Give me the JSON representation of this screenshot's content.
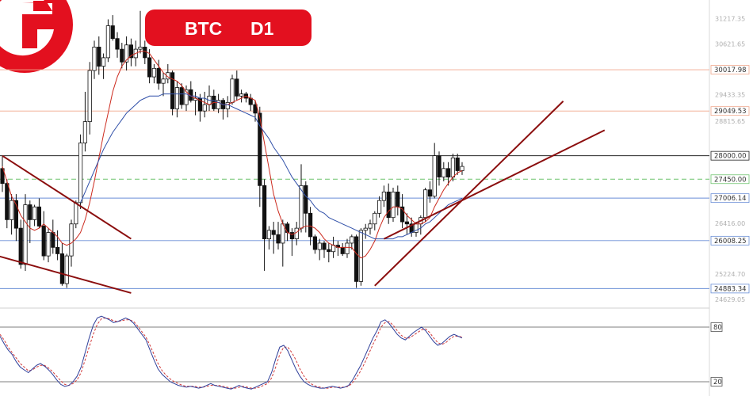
{
  "badge": {
    "symbol": "BTC",
    "timeframe": "D1"
  },
  "colors": {
    "brand": "#e3101f",
    "bull": "#ffffff",
    "bear": "#111111",
    "sma_fast": "#cc2a1e",
    "sma_slow": "#2f4fa8",
    "channel": "#8b0e0e",
    "stoch_k": "#2f3f9a",
    "stoch_d": "#d23b3b"
  },
  "chart_data": {
    "type": "candlestick",
    "symbol": "BTC",
    "timeframe": "D1",
    "ylim": [
      24500,
      31450
    ],
    "price_ticks": [
      31217.35,
      30621.65,
      29433.35,
      28815.65,
      26416.0,
      25224.7,
      24629.05
    ],
    "levels": [
      {
        "price": 30017.98,
        "label": "30017.98",
        "color": "#f0a78c"
      },
      {
        "price": 29049.53,
        "label": "29049.53",
        "color": "#f0a78c"
      },
      {
        "price": 28000.0,
        "label": "28000.00",
        "color": "#222222"
      },
      {
        "price": 27450.0,
        "label": "27450.00",
        "color": "#6ec46e",
        "dashed": true
      },
      {
        "price": 27006.14,
        "label": "27006.14",
        "color": "#6a8ed6"
      },
      {
        "price": 26008.25,
        "label": "26008.25",
        "color": "#6a8ed6"
      },
      {
        "price": 24883.34,
        "label": "24883.34",
        "color": "#6a8ed6"
      }
    ],
    "candles": [
      [
        27700,
        28000,
        27150,
        27350
      ],
      [
        27350,
        27450,
        26300,
        26500
      ],
      [
        26500,
        27100,
        26150,
        26950
      ],
      [
        26950,
        27100,
        26000,
        26300
      ],
      [
        26300,
        26500,
        25350,
        25450
      ],
      [
        25450,
        27100,
        25300,
        26850
      ],
      [
        26850,
        26950,
        25950,
        26500
      ],
      [
        26500,
        26850,
        26350,
        26800
      ],
      [
        26800,
        27000,
        26300,
        26350
      ],
      [
        26350,
        26700,
        25550,
        25650
      ],
      [
        25650,
        26300,
        25500,
        26200
      ],
      [
        26200,
        26500,
        25700,
        25850
      ],
      [
        25850,
        26250,
        25550,
        25700
      ],
      [
        25700,
        25950,
        24950,
        25000
      ],
      [
        25000,
        25700,
        24900,
        25650
      ],
      [
        25650,
        26500,
        25400,
        26400
      ],
      [
        26400,
        26950,
        26300,
        26900
      ],
      [
        26900,
        28500,
        26750,
        28300
      ],
      [
        28300,
        29500,
        28100,
        28800
      ],
      [
        28800,
        30200,
        28500,
        30000
      ],
      [
        30000,
        30700,
        29800,
        30550
      ],
      [
        30550,
        30800,
        29900,
        30100
      ],
      [
        30100,
        30400,
        29800,
        30300
      ],
      [
        30300,
        31200,
        30200,
        31050
      ],
      [
        31050,
        31300,
        30700,
        30750
      ],
      [
        30750,
        30900,
        30300,
        30500
      ],
      [
        30500,
        30650,
        30050,
        30200
      ],
      [
        30200,
        30800,
        30000,
        30600
      ],
      [
        30600,
        30750,
        30100,
        30300
      ],
      [
        30300,
        30700,
        30100,
        30500
      ],
      [
        30500,
        31400,
        30400,
        30550
      ],
      [
        30550,
        30700,
        30150,
        30300
      ],
      [
        30300,
        30500,
        29700,
        29850
      ],
      [
        29850,
        30150,
        29700,
        30050
      ],
      [
        30050,
        30250,
        29550,
        29700
      ],
      [
        29700,
        29950,
        29400,
        29800
      ],
      [
        29800,
        30150,
        29700,
        29950
      ],
      [
        29950,
        30000,
        28950,
        29100
      ],
      [
        29100,
        29750,
        28900,
        29600
      ],
      [
        29600,
        29700,
        29100,
        29200
      ],
      [
        29200,
        29650,
        29050,
        29550
      ],
      [
        29550,
        29750,
        29250,
        29300
      ],
      [
        29300,
        29500,
        28950,
        29350
      ],
      [
        29350,
        29450,
        28800,
        29050
      ],
      [
        29050,
        29500,
        28900,
        29200
      ],
      [
        29200,
        29650,
        29050,
        29400
      ],
      [
        29400,
        29550,
        29050,
        29100
      ],
      [
        29100,
        29450,
        29000,
        29300
      ],
      [
        29300,
        29350,
        28850,
        29100
      ],
      [
        29100,
        29400,
        28900,
        29250
      ],
      [
        29250,
        29900,
        29200,
        29800
      ],
      [
        29800,
        30000,
        29300,
        29400
      ],
      [
        29400,
        29550,
        29250,
        29450
      ],
      [
        29450,
        29500,
        29250,
        29350
      ],
      [
        29350,
        29450,
        29050,
        29200
      ],
      [
        29200,
        29300,
        28800,
        29000
      ],
      [
        29000,
        29150,
        26800,
        27300
      ],
      [
        27300,
        27450,
        25300,
        26050
      ],
      [
        26050,
        26350,
        25800,
        26250
      ],
      [
        26250,
        26450,
        25700,
        26150
      ],
      [
        26150,
        26450,
        25800,
        25950
      ],
      [
        25950,
        26500,
        25400,
        26400
      ],
      [
        26400,
        26450,
        26000,
        26200
      ],
      [
        26200,
        26300,
        25650,
        26050
      ],
      [
        26050,
        26450,
        25900,
        26300
      ],
      [
        26300,
        27800,
        26200,
        27300
      ],
      [
        27300,
        27400,
        26200,
        26650
      ],
      [
        26650,
        26800,
        25900,
        26100
      ],
      [
        26100,
        26150,
        25700,
        25800
      ],
      [
        25800,
        26050,
        25550,
        25950
      ],
      [
        25950,
        26000,
        25600,
        25800
      ],
      [
        25800,
        25950,
        25500,
        25750
      ],
      [
        25750,
        26100,
        25600,
        25900
      ],
      [
        25900,
        26000,
        25650,
        25850
      ],
      [
        25850,
        25950,
        25650,
        25700
      ],
      [
        25700,
        26050,
        25600,
        25950
      ],
      [
        25950,
        26150,
        25800,
        26100
      ],
      [
        26100,
        26150,
        24900,
        25050
      ],
      [
        25050,
        26300,
        24950,
        26250
      ],
      [
        26250,
        26400,
        26050,
        26300
      ],
      [
        26300,
        26500,
        26150,
        26400
      ],
      [
        26400,
        26700,
        26250,
        26650
      ],
      [
        26650,
        27050,
        26550,
        26950
      ],
      [
        26950,
        27300,
        26800,
        27150
      ],
      [
        27150,
        27350,
        26400,
        26550
      ],
      [
        26550,
        27250,
        26450,
        27150
      ],
      [
        27150,
        27300,
        26600,
        26800
      ],
      [
        26800,
        27100,
        26300,
        26450
      ],
      [
        26450,
        26650,
        26150,
        26400
      ],
      [
        26400,
        26550,
        26100,
        26200
      ],
      [
        26200,
        26450,
        26100,
        26400
      ],
      [
        26400,
        26600,
        26150,
        26550
      ],
      [
        26550,
        27250,
        26450,
        27200
      ],
      [
        27200,
        27400,
        26900,
        27050
      ],
      [
        27050,
        28300,
        27000,
        28000
      ],
      [
        28000,
        28100,
        27300,
        27500
      ],
      [
        27500,
        27850,
        27400,
        27700
      ],
      [
        27700,
        27850,
        27300,
        27500
      ],
      [
        27500,
        28050,
        27400,
        27950
      ],
      [
        27950,
        28050,
        27550,
        27650
      ],
      [
        27650,
        27850,
        27550,
        27750
      ]
    ],
    "sma_fast": [
      27750,
      27400,
      27050,
      26850,
      26600,
      26450,
      26300,
      26250,
      26300,
      26400,
      26300,
      26200,
      26100,
      25950,
      25900,
      25950,
      26050,
      26200,
      26500,
      26900,
      27400,
      27950,
      28500,
      29000,
      29500,
      29850,
      30100,
      30250,
      30350,
      30400,
      30450,
      30450,
      30400,
      30250,
      30100,
      29950,
      29850,
      29800,
      29750,
      29650,
      29500,
      29400,
      29350,
      29300,
      29250,
      29200,
      29250,
      29250,
      29200,
      29200,
      29250,
      29300,
      29350,
      29400,
      29350,
      29300,
      28900,
      28300,
      27700,
      27100,
      26700,
      26400,
      26200,
      26150,
      26200,
      26300,
      26350,
      26350,
      26300,
      26200,
      26050,
      25950,
      25900,
      25850,
      25850,
      25850,
      25850,
      25700,
      25600,
      25650,
      25800,
      26000,
      26300,
      26550,
      26700,
      26800,
      26800,
      26750,
      26600,
      26500,
      26400,
      26400,
      26450,
      26550,
      26800,
      27000,
      27200,
      27350,
      27500,
      27600,
      27650
    ],
    "sma_slow": [
      null,
      null,
      null,
      null,
      null,
      null,
      null,
      null,
      null,
      null,
      null,
      null,
      null,
      null,
      null,
      null,
      null,
      26900,
      27150,
      27400,
      27650,
      27900,
      28150,
      28350,
      28550,
      28700,
      28850,
      29000,
      29100,
      29200,
      29300,
      29350,
      29400,
      29400,
      29400,
      29450,
      29450,
      29450,
      29450,
      29450,
      29450,
      29400,
      29400,
      29350,
      29350,
      29300,
      29300,
      29250,
      29200,
      29200,
      29150,
      29100,
      29050,
      29000,
      28950,
      28900,
      28700,
      28550,
      28400,
      28200,
      28050,
      27900,
      27700,
      27500,
      27350,
      27200,
      27050,
      26950,
      26800,
      26700,
      26650,
      26550,
      26500,
      26450,
      26400,
      26350,
      26300,
      26250,
      26200,
      26150,
      26100,
      26050,
      26050,
      26050,
      26050,
      26050,
      26100,
      26100,
      26150,
      26200,
      26250,
      26300,
      26400,
      26450,
      26550,
      26650,
      26750,
      26850,
      26900,
      26950,
      27000
    ],
    "channels": [
      {
        "from": [
          0,
          28000
        ],
        "to": [
          28,
          26050
        ]
      },
      {
        "from": [
          -1,
          25650
        ],
        "to": [
          28,
          24780
        ]
      },
      {
        "from": [
          81,
          24950
        ],
        "to": [
          122,
          29280
        ]
      },
      {
        "from": [
          83,
          26050
        ],
        "to": [
          131,
          28600
        ]
      }
    ],
    "stochastic": {
      "levels": [
        80,
        20
      ],
      "level_labels": [
        "80",
        "20"
      ],
      "k": [
        70,
        62,
        55,
        50,
        42,
        36,
        33,
        30,
        34,
        38,
        40,
        37,
        33,
        28,
        22,
        17,
        15,
        16,
        20,
        26,
        36,
        52,
        68,
        82,
        90,
        92,
        90,
        88,
        85,
        86,
        88,
        90,
        88,
        84,
        78,
        72,
        66,
        55,
        44,
        34,
        28,
        24,
        20,
        18,
        16,
        15,
        14,
        15,
        14,
        13,
        14,
        16,
        18,
        16,
        15,
        14,
        13,
        12,
        14,
        16,
        14,
        13,
        12,
        14,
        16,
        18,
        20,
        30,
        45,
        58,
        60,
        54,
        44,
        34,
        26,
        20,
        17,
        15,
        14,
        13,
        13,
        14,
        15,
        14,
        13,
        14,
        16,
        22,
        30,
        38,
        48,
        58,
        68,
        76,
        86,
        88,
        84,
        78,
        72,
        68,
        66,
        70,
        74,
        77,
        80,
        76,
        70,
        64,
        60,
        62,
        66,
        70,
        72,
        70,
        68
      ],
      "d": [
        72,
        66,
        58,
        52,
        46,
        40,
        36,
        32,
        33,
        36,
        38,
        38,
        35,
        31,
        26,
        21,
        17,
        16,
        18,
        22,
        30,
        44,
        58,
        72,
        83,
        89,
        90,
        89,
        87,
        86,
        87,
        88,
        88,
        86,
        81,
        75,
        69,
        60,
        50,
        40,
        32,
        27,
        23,
        20,
        18,
        16,
        15,
        15,
        15,
        14,
        14,
        15,
        16,
        16,
        16,
        15,
        14,
        13,
        13,
        14,
        15,
        14,
        13,
        13,
        14,
        16,
        18,
        24,
        36,
        50,
        58,
        58,
        52,
        44,
        34,
        26,
        20,
        17,
        15,
        14,
        13,
        13,
        14,
        14,
        14,
        14,
        15,
        19,
        25,
        32,
        41,
        51,
        61,
        70,
        80,
        85,
        86,
        82,
        76,
        71,
        68,
        68,
        71,
        74,
        77,
        78,
        74,
        68,
        63,
        61,
        63,
        67,
        70,
        70,
        69
      ]
    }
  }
}
